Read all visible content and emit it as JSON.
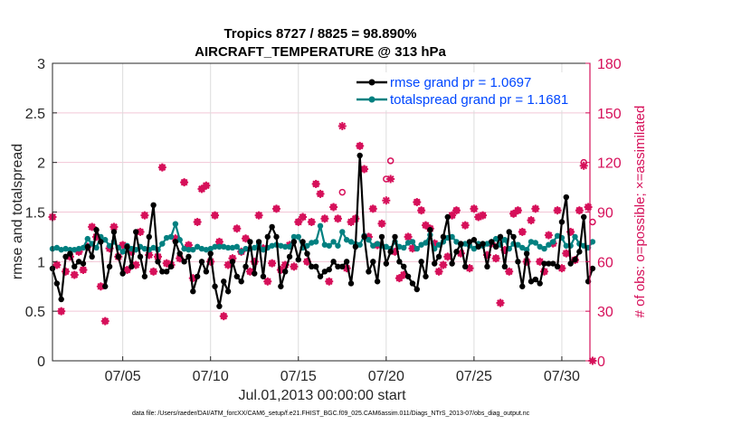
{
  "chart_data": {
    "type": "line",
    "title": [
      "Tropics 8727 / 8825 = 98.890%",
      "AIRCRAFT_TEMPERATURE @ 313 hPa"
    ],
    "xlabel": "Jul.01,2013 00:00:00 start",
    "ylabel": "rmse and totalspread",
    "ylabel_right": "# of obs: o=possible; ×=assimilated",
    "footnote": "data file: /Users/raeder/DAI/ATM_forcXX/CAM6_setup/f.e21.FHIST_BGC.f09_025.CAM6assim.011/Diags_NTrS_2013-07/obs_diag_output.nc",
    "xlim_days": [
      0,
      30.6
    ],
    "x_step_days": 0.25,
    "ylim": [
      0,
      3
    ],
    "ylim_right": [
      0,
      180
    ],
    "yticks": [
      "0",
      "0.5",
      "1",
      "1.5",
      "2",
      "2.5",
      "3"
    ],
    "yticks_right": [
      "0",
      "30",
      "60",
      "90",
      "120",
      "150",
      "180"
    ],
    "xticks": [
      {
        "day": 4,
        "label": "07/05"
      },
      {
        "day": 9,
        "label": "07/10"
      },
      {
        "day": 14,
        "label": "07/15"
      },
      {
        "day": 19,
        "label": "07/20"
      },
      {
        "day": 24,
        "label": "07/25"
      },
      {
        "day": 29,
        "label": "07/30"
      }
    ],
    "legend": {
      "placement": "top-right",
      "entries": [
        "rmse grand pr = 1.0697",
        "totalspread grand pr = 1.1681"
      ]
    },
    "colors": {
      "rmse": "#000000",
      "spread": "#008080",
      "obs": "#d6105a"
    },
    "series": [
      {
        "name": "rmse",
        "values": [
          0.93,
          0.78,
          0.62,
          1.05,
          1.08,
          0.95,
          1.0,
          0.98,
          1.15,
          1.05,
          1.32,
          1.2,
          0.75,
          0.95,
          1.3,
          1.05,
          0.88,
          1.15,
          0.95,
          1.3,
          1.05,
          0.85,
          1.25,
          1.57,
          1.0,
          0.9,
          0.9,
          0.95,
          1.2,
          1.08,
          1.0,
          1.05,
          0.7,
          0.85,
          1.0,
          0.9,
          1.08,
          0.75,
          0.55,
          0.8,
          0.7,
          1.0,
          0.85,
          0.8,
          0.95,
          1.2,
          0.88,
          1.2,
          0.85,
          1.25,
          1.35,
          1.25,
          0.75,
          0.9,
          1.05,
          1.2,
          1.02,
          1.2,
          1.08,
          0.95,
          0.95,
          0.85,
          0.9,
          0.92,
          1.0,
          0.95,
          0.95,
          1.0,
          0.78,
          1.15,
          2.07,
          1.25,
          0.9,
          1.0,
          0.8,
          1.25,
          0.98,
          1.1,
          1.25,
          1.0,
          0.95,
          0.85,
          0.78,
          0.72,
          1.0,
          0.85,
          1.32,
          0.98,
          1.05,
          1.25,
          1.45,
          0.98,
          1.1,
          1.18,
          0.95,
          1.2,
          1.22,
          1.15,
          1.18,
          0.95,
          1.2,
          1.15,
          1.25,
          0.95,
          1.3,
          1.25,
          1.0,
          0.75,
          1.08,
          0.8,
          0.82,
          0.78,
          0.98,
          0.98,
          0.98,
          0.95,
          1.4,
          1.65,
          0.98,
          1.02,
          1.1,
          1.45,
          0.8,
          0.93
        ]
      },
      {
        "name": "totalspread",
        "values": [
          1.13,
          1.14,
          1.12,
          1.13,
          1.12,
          1.12,
          1.13,
          1.14,
          1.23,
          1.18,
          1.14,
          1.25,
          1.22,
          1.16,
          1.2,
          1.14,
          1.1,
          1.16,
          1.13,
          1.12,
          1.15,
          1.13,
          1.12,
          1.14,
          1.12,
          1.18,
          1.24,
          1.25,
          1.38,
          1.22,
          1.13,
          1.12,
          1.12,
          1.15,
          1.13,
          1.12,
          1.13,
          1.15,
          1.15,
          1.15,
          1.14,
          1.14,
          1.15,
          1.1,
          1.13,
          1.13,
          1.14,
          1.17,
          1.12,
          1.14,
          1.16,
          1.17,
          1.16,
          1.15,
          1.15,
          1.25,
          1.25,
          1.14,
          1.16,
          1.19,
          1.2,
          1.36,
          1.17,
          1.16,
          1.2,
          1.16,
          1.3,
          1.22,
          1.2,
          1.18,
          1.17,
          1.26,
          1.22,
          1.16,
          1.18,
          1.16,
          1.15,
          1.13,
          1.2,
          1.15,
          1.14,
          1.19,
          1.2,
          1.13,
          1.17,
          1.19,
          1.27,
          1.13,
          1.17,
          1.2,
          1.24,
          1.25,
          1.2,
          1.17,
          1.18,
          1.16,
          1.13,
          1.18,
          1.16,
          1.18,
          1.2,
          1.23,
          1.17,
          1.22,
          1.13,
          1.18,
          1.17,
          1.14,
          1.12,
          1.2,
          1.19,
          1.15,
          1.13,
          1.17,
          1.2,
          1.26,
          1.24,
          1.16,
          1.16,
          1.25,
          1.18,
          1.16,
          1.14,
          1.2
        ]
      },
      {
        "name": "obs_possible",
        "values": [
          87,
          58,
          30,
          54,
          63,
          52,
          66,
          55,
          69,
          81,
          75,
          45,
          24,
          68,
          81,
          63,
          70,
          55,
          66,
          58,
          78,
          88,
          64,
          54,
          63,
          117,
          59,
          58,
          74,
          62,
          108,
          70,
          50,
          84,
          104,
          106,
          60,
          88,
          72,
          27,
          58,
          62,
          80,
          66,
          74,
          54,
          60,
          88,
          68,
          48,
          59,
          92,
          55,
          58,
          70,
          57,
          84,
          87,
          60,
          84,
          107,
          101,
          86,
          48,
          93,
          86,
          102,
          56,
          84,
          86,
          130,
          116,
          75,
          92,
          70,
          83,
          110,
          121,
          66,
          50,
          52,
          75,
          68,
          96,
          91,
          82,
          80,
          71,
          54,
          58,
          63,
          88,
          91,
          65,
          82,
          56,
          92,
          87,
          88,
          64,
          71,
          62,
          35,
          67,
          54,
          89,
          91,
          78,
          60,
          85,
          92,
          60,
          54,
          76,
          71,
          91,
          56,
          65,
          78,
          61,
          91,
          120,
          93,
          84
        ]
      },
      {
        "name": "obs_assimilated",
        "values": [
          87,
          58,
          30,
          54,
          63,
          52,
          66,
          55,
          69,
          81,
          75,
          45,
          24,
          68,
          81,
          63,
          70,
          55,
          66,
          58,
          78,
          88,
          64,
          54,
          63,
          117,
          59,
          58,
          74,
          62,
          108,
          70,
          50,
          84,
          104,
          106,
          60,
          88,
          72,
          27,
          58,
          62,
          80,
          66,
          74,
          54,
          60,
          88,
          68,
          48,
          59,
          92,
          55,
          58,
          70,
          57,
          84,
          87,
          60,
          84,
          107,
          101,
          86,
          48,
          93,
          86,
          142,
          56,
          84,
          86,
          130,
          116,
          75,
          92,
          70,
          83,
          97,
          110,
          66,
          50,
          52,
          75,
          68,
          96,
          91,
          82,
          80,
          71,
          54,
          58,
          63,
          88,
          91,
          65,
          82,
          56,
          92,
          87,
          88,
          64,
          71,
          62,
          35,
          67,
          54,
          89,
          91,
          78,
          60,
          85,
          92,
          60,
          54,
          76,
          71,
          91,
          56,
          65,
          78,
          61,
          91,
          118,
          93,
          0
        ]
      }
    ]
  }
}
